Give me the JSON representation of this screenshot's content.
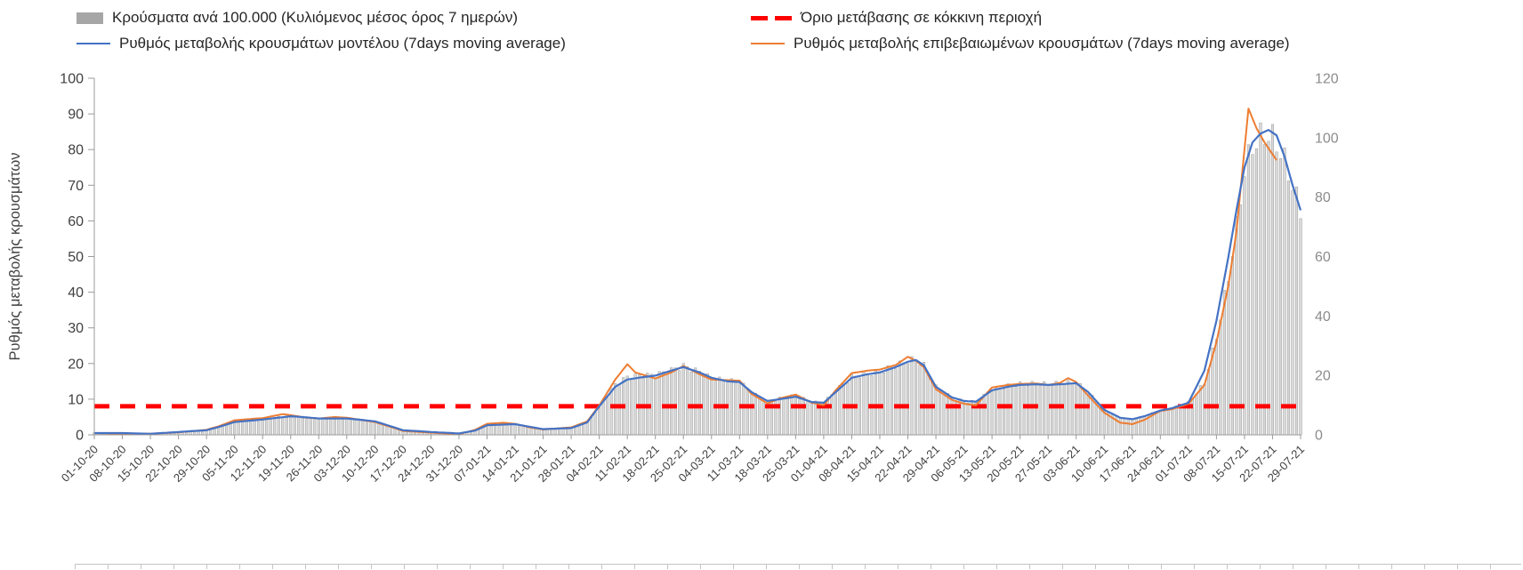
{
  "chart_data": {
    "type": "bar",
    "title": "",
    "ylabel_left": "Ρυθμός μεταβολής κρουσμάτων",
    "y_left": {
      "min": 0,
      "max": 100,
      "step": 10
    },
    "y_right": {
      "min": 0,
      "max": 120,
      "step": 20
    },
    "days_total": 301,
    "x_tick_labels": [
      "01-10-20",
      "08-10-20",
      "15-10-20",
      "22-10-20",
      "29-10-20",
      "05-11-20",
      "12-11-20",
      "19-11-20",
      "26-11-20",
      "03-12-20",
      "10-12-20",
      "17-12-20",
      "24-12-20",
      "31-12-20",
      "07-01-21",
      "14-01-21",
      "21-01-21",
      "28-01-21",
      "04-02-21",
      "11-02-21",
      "18-02-21",
      "25-02-21",
      "04-03-21",
      "11-03-21",
      "18-03-21",
      "25-03-21",
      "01-04-21",
      "08-04-21",
      "15-04-21",
      "22-04-21",
      "29-04-21",
      "06-05-21",
      "13-05-21",
      "20-05-21",
      "27-05-21",
      "03-06-21",
      "10-06-21",
      "17-06-21",
      "24-06-21",
      "01-07-21",
      "08-07-21",
      "15-07-21",
      "22-07-21",
      "29-07-21"
    ],
    "colors": {
      "bars_fill": "#d9d9d9",
      "bars_stroke": "#9a9a9a",
      "legend_bar": "#a6a6a6",
      "model": "#4472c4",
      "confirmed": "#ed7d31",
      "threshold": "#ff0000",
      "axis": "#9b9b9b",
      "text": "#404040",
      "right_text": "#8c8c8c"
    },
    "series": {
      "bars_right_axis": {
        "name": "Κρούσματα ανά 100.000 (Κυλιόμενος μέσος όρος 7 ημερών)",
        "axis": "right",
        "anchors": [
          [
            0,
            0.7
          ],
          [
            7,
            0.6
          ],
          [
            14,
            0.4
          ],
          [
            21,
            1.0
          ],
          [
            28,
            1.7
          ],
          [
            31,
            2.8
          ],
          [
            35,
            4.6
          ],
          [
            42,
            5.4
          ],
          [
            49,
            6.4
          ],
          [
            56,
            5.6
          ],
          [
            63,
            5.7
          ],
          [
            70,
            4.6
          ],
          [
            74,
            2.8
          ],
          [
            77,
            1.5
          ],
          [
            84,
            1.0
          ],
          [
            91,
            0.5
          ],
          [
            95,
            1.6
          ],
          [
            98,
            3.4
          ],
          [
            105,
            3.7
          ],
          [
            109,
            2.6
          ],
          [
            112,
            1.9
          ],
          [
            119,
            2.4
          ],
          [
            123,
            4.4
          ],
          [
            126,
            9.8
          ],
          [
            130,
            17.0
          ],
          [
            133,
            19.5
          ],
          [
            137,
            20.0
          ],
          [
            140,
            20.2
          ],
          [
            144,
            21.8
          ],
          [
            147,
            23.2
          ],
          [
            151,
            21.2
          ],
          [
            154,
            19.2
          ],
          [
            158,
            18.3
          ],
          [
            161,
            18.0
          ],
          [
            164,
            14.2
          ],
          [
            168,
            11.3
          ],
          [
            171,
            12.2
          ],
          [
            175,
            13.2
          ],
          [
            179,
            11.0
          ],
          [
            182,
            10.8
          ],
          [
            185,
            14.8
          ],
          [
            189,
            19.5
          ],
          [
            193,
            20.6
          ],
          [
            196,
            21.3
          ],
          [
            200,
            23.2
          ],
          [
            203,
            25.0
          ],
          [
            205,
            25.4
          ],
          [
            207,
            23.4
          ],
          [
            210,
            16.1
          ],
          [
            214,
            12.4
          ],
          [
            217,
            11.2
          ],
          [
            220,
            11.0
          ],
          [
            224,
            15.2
          ],
          [
            228,
            16.4
          ],
          [
            231,
            17.0
          ],
          [
            235,
            17.2
          ],
          [
            238,
            17.0
          ],
          [
            241,
            17.3
          ],
          [
            245,
            17.6
          ],
          [
            248,
            14.2
          ],
          [
            252,
            8.3
          ],
          [
            256,
            5.6
          ],
          [
            259,
            5.2
          ],
          [
            262,
            6.2
          ],
          [
            266,
            8.1
          ],
          [
            269,
            8.8
          ],
          [
            273,
            10.8
          ],
          [
            277,
            17.5
          ],
          [
            280,
            33.0
          ],
          [
            283,
            53.0
          ],
          [
            285,
            70.0
          ],
          [
            287,
            89.0
          ],
          [
            289,
            97.0
          ],
          [
            291,
            100.0
          ],
          [
            293,
            101.0
          ],
          [
            295,
            98.0
          ],
          [
            297,
            92.0
          ],
          [
            299,
            84.0
          ],
          [
            301,
            75.0
          ]
        ]
      },
      "model_left_axis": {
        "name": "Ρυθμός μεταβολής κρουσμάτων μοντέλου (7days moving average)",
        "axis": "left",
        "anchors": [
          [
            0,
            0.5
          ],
          [
            7,
            0.5
          ],
          [
            14,
            0.3
          ],
          [
            21,
            0.8
          ],
          [
            28,
            1.3
          ],
          [
            31,
            2.2
          ],
          [
            35,
            3.6
          ],
          [
            42,
            4.3
          ],
          [
            49,
            5.2
          ],
          [
            53,
            4.9
          ],
          [
            56,
            4.6
          ],
          [
            63,
            4.6
          ],
          [
            70,
            3.8
          ],
          [
            74,
            2.4
          ],
          [
            77,
            1.3
          ],
          [
            84,
            0.8
          ],
          [
            91,
            0.4
          ],
          [
            95,
            1.2
          ],
          [
            98,
            2.7
          ],
          [
            105,
            3.0
          ],
          [
            109,
            2.2
          ],
          [
            112,
            1.6
          ],
          [
            119,
            1.9
          ],
          [
            123,
            3.5
          ],
          [
            126,
            8.0
          ],
          [
            130,
            13.5
          ],
          [
            133,
            15.5
          ],
          [
            137,
            16.2
          ],
          [
            140,
            16.6
          ],
          [
            144,
            18.0
          ],
          [
            147,
            19.0
          ],
          [
            151,
            17.5
          ],
          [
            154,
            16.0
          ],
          [
            158,
            15.0
          ],
          [
            161,
            14.8
          ],
          [
            164,
            12.0
          ],
          [
            168,
            9.5
          ],
          [
            171,
            10.0
          ],
          [
            175,
            10.7
          ],
          [
            179,
            9.2
          ],
          [
            182,
            9.0
          ],
          [
            185,
            12.0
          ],
          [
            189,
            16.0
          ],
          [
            193,
            17.0
          ],
          [
            196,
            17.5
          ],
          [
            200,
            19.0
          ],
          [
            203,
            20.5
          ],
          [
            205,
            21.0
          ],
          [
            207,
            19.5
          ],
          [
            210,
            13.5
          ],
          [
            214,
            10.5
          ],
          [
            217,
            9.5
          ],
          [
            220,
            9.3
          ],
          [
            224,
            12.5
          ],
          [
            228,
            13.5
          ],
          [
            231,
            14.0
          ],
          [
            235,
            14.2
          ],
          [
            238,
            14.0
          ],
          [
            241,
            14.2
          ],
          [
            245,
            14.5
          ],
          [
            248,
            12.0
          ],
          [
            252,
            7.0
          ],
          [
            256,
            4.8
          ],
          [
            259,
            4.4
          ],
          [
            262,
            5.2
          ],
          [
            266,
            6.8
          ],
          [
            269,
            7.5
          ],
          [
            273,
            9.0
          ],
          [
            277,
            18.0
          ],
          [
            280,
            32.0
          ],
          [
            283,
            50.0
          ],
          [
            285,
            63.0
          ],
          [
            287,
            75.0
          ],
          [
            289,
            82.0
          ],
          [
            291,
            84.5
          ],
          [
            293,
            85.5
          ],
          [
            295,
            84.0
          ],
          [
            297,
            78.0
          ],
          [
            299,
            70.0
          ],
          [
            301,
            63.0
          ]
        ]
      },
      "confirmed_left_axis": {
        "name": "Ρυθμός μεταβολής επιβεβαιωμένων κρουσμάτων (7days moving average)",
        "axis": "left",
        "anchors": [
          [
            0,
            0.5
          ],
          [
            7,
            0.3
          ],
          [
            14,
            0.3
          ],
          [
            21,
            0.7
          ],
          [
            28,
            1.4
          ],
          [
            31,
            2.4
          ],
          [
            35,
            4.1
          ],
          [
            42,
            4.7
          ],
          [
            47,
            5.8
          ],
          [
            49,
            5.5
          ],
          [
            53,
            4.8
          ],
          [
            56,
            4.6
          ],
          [
            60,
            5.0
          ],
          [
            63,
            4.8
          ],
          [
            70,
            3.6
          ],
          [
            74,
            2.2
          ],
          [
            77,
            1.1
          ],
          [
            84,
            0.6
          ],
          [
            91,
            0.2
          ],
          [
            95,
            1.4
          ],
          [
            98,
            3.1
          ],
          [
            102,
            3.4
          ],
          [
            105,
            3.1
          ],
          [
            109,
            2.0
          ],
          [
            112,
            1.5
          ],
          [
            119,
            2.1
          ],
          [
            123,
            3.8
          ],
          [
            126,
            8.2
          ],
          [
            130,
            15.5
          ],
          [
            133,
            19.8
          ],
          [
            135,
            17.5
          ],
          [
            140,
            15.8
          ],
          [
            144,
            17.5
          ],
          [
            147,
            19.3
          ],
          [
            151,
            17.0
          ],
          [
            154,
            15.5
          ],
          [
            161,
            15.2
          ],
          [
            164,
            11.5
          ],
          [
            168,
            8.8
          ],
          [
            171,
            10.2
          ],
          [
            175,
            11.3
          ],
          [
            179,
            9.0
          ],
          [
            182,
            8.3
          ],
          [
            185,
            12.5
          ],
          [
            189,
            17.3
          ],
          [
            193,
            18.0
          ],
          [
            196,
            18.3
          ],
          [
            200,
            19.6
          ],
          [
            203,
            21.9
          ],
          [
            205,
            20.8
          ],
          [
            207,
            19.0
          ],
          [
            210,
            12.8
          ],
          [
            214,
            9.8
          ],
          [
            217,
            8.7
          ],
          [
            220,
            8.3
          ],
          [
            224,
            13.3
          ],
          [
            228,
            14.0
          ],
          [
            231,
            14.3
          ],
          [
            235,
            14.4
          ],
          [
            238,
            14.0
          ],
          [
            241,
            14.6
          ],
          [
            243,
            15.9
          ],
          [
            245,
            14.8
          ],
          [
            248,
            11.0
          ],
          [
            252,
            6.2
          ],
          [
            256,
            3.4
          ],
          [
            259,
            3.0
          ],
          [
            262,
            4.2
          ],
          [
            266,
            6.7
          ],
          [
            269,
            7.2
          ],
          [
            273,
            8.7
          ],
          [
            277,
            14.0
          ],
          [
            280,
            26.0
          ],
          [
            283,
            42.0
          ],
          [
            285,
            57.0
          ],
          [
            287,
            80.0
          ],
          [
            288,
            91.5
          ],
          [
            290,
            86.0
          ],
          [
            292,
            82.0
          ],
          [
            295,
            77.0
          ]
        ]
      },
      "threshold": {
        "name": "Όριο μετάβασης σε κόκκινη περιοχή",
        "axis": "left",
        "value_left_axis": 8
      }
    },
    "legend_position": "top",
    "grid": false
  }
}
